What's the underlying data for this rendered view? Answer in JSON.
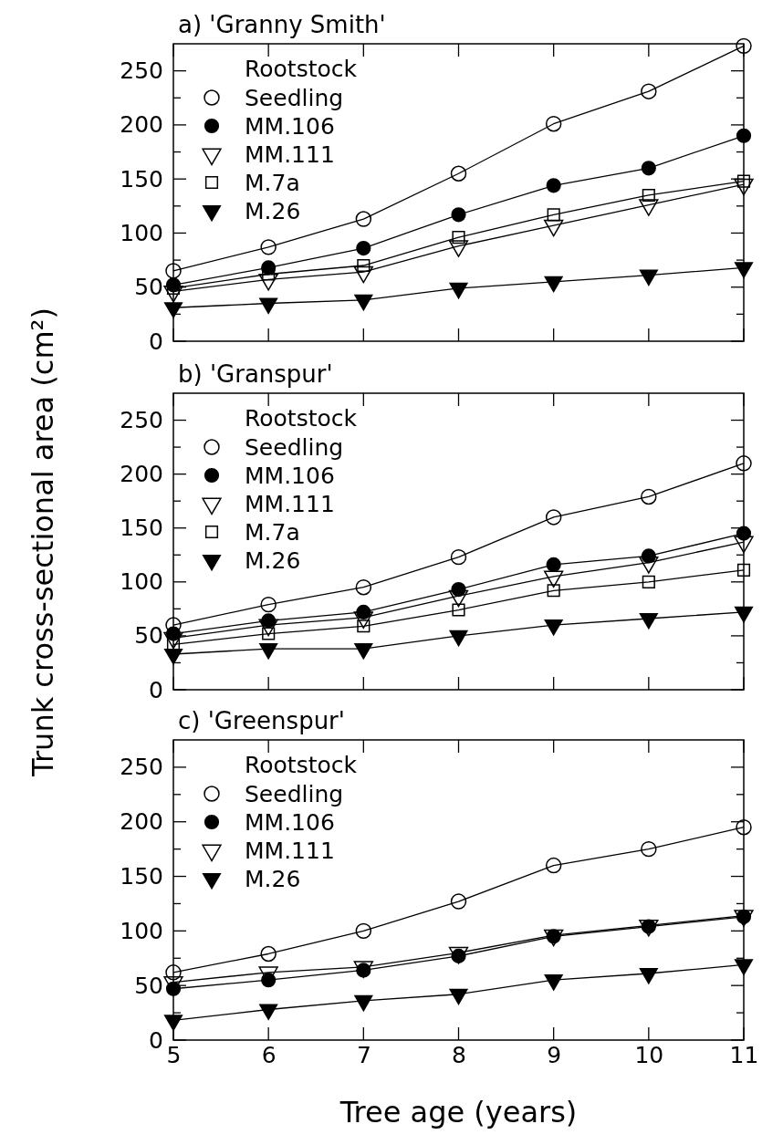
{
  "chart_data": [
    {
      "type": "line",
      "title": "a) 'Granny Smith'",
      "legend_title": "Rootstock",
      "legend": "top left",
      "tick_labels": "y",
      "x": [
        5,
        6,
        7,
        8,
        9,
        10,
        11
      ],
      "xlim": [
        5,
        11
      ],
      "xticks": [
        5,
        6,
        7,
        8,
        9,
        10,
        11
      ],
      "ylim": [
        0,
        275
      ],
      "yticks": [
        0,
        {
          "value": 25,
          "label": null
        },
        50,
        {
          "value": 75,
          "label": null
        },
        100,
        {
          "value": 125,
          "label": null
        },
        150,
        {
          "value": 175,
          "label": null
        },
        200,
        {
          "value": 225,
          "label": null
        },
        250
      ],
      "series": [
        {
          "name": "Seedling",
          "color": "#000000",
          "marker": "circle-open",
          "values": [
            65,
            87,
            113,
            155,
            201,
            231,
            273
          ]
        },
        {
          "name": "MM.106",
          "color": "#000000",
          "marker": "circle",
          "values": [
            52,
            68,
            86,
            117,
            144,
            160,
            190
          ]
        },
        {
          "name": "MM.111",
          "color": "#000000",
          "marker": "triangle-down-open",
          "values": [
            46,
            57,
            64,
            88,
            107,
            126,
            145
          ]
        },
        {
          "name": "M.7a",
          "color": "#000000",
          "marker": "square-open",
          "values": [
            49,
            62,
            70,
            96,
            117,
            135,
            148
          ]
        },
        {
          "name": "M.26",
          "color": "#000000",
          "marker": "triangle-down",
          "values": [
            31,
            35,
            38,
            49,
            55,
            61,
            68
          ]
        }
      ]
    },
    {
      "type": "line",
      "title": "b) 'Granspur'",
      "ylabel": "Trunk cross-sectional area (cm²)",
      "legend_title": "Rootstock",
      "legend": "top left",
      "tick_labels": "y",
      "x": [
        5,
        6,
        7,
        8,
        9,
        10,
        11
      ],
      "xlim": [
        5,
        11
      ],
      "xticks": [
        5,
        6,
        7,
        8,
        9,
        10,
        11
      ],
      "ylim": [
        0,
        275
      ],
      "yticks": [
        0,
        {
          "value": 25,
          "label": null
        },
        50,
        {
          "value": 75,
          "label": null
        },
        100,
        {
          "value": 125,
          "label": null
        },
        150,
        {
          "value": 175,
          "label": null
        },
        200,
        {
          "value": 225,
          "label": null
        },
        250
      ],
      "series": [
        {
          "name": "Seedling",
          "color": "#000000",
          "marker": "circle-open",
          "values": [
            60,
            79,
            95,
            123,
            160,
            179,
            210
          ]
        },
        {
          "name": "MM.106",
          "color": "#000000",
          "marker": "circle",
          "values": [
            52,
            64,
            72,
            93,
            116,
            124,
            145
          ]
        },
        {
          "name": "MM.111",
          "color": "#000000",
          "marker": "triangle-down-open",
          "values": [
            48,
            60,
            67,
            87,
            105,
            118,
            137
          ]
        },
        {
          "name": "M.7a",
          "color": "#000000",
          "marker": "square-open",
          "values": [
            42,
            52,
            59,
            74,
            92,
            100,
            111
          ]
        },
        {
          "name": "M.26",
          "color": "#000000",
          "marker": "triangle-down",
          "values": [
            33,
            38,
            38,
            50,
            60,
            66,
            72
          ]
        }
      ]
    },
    {
      "type": "line",
      "title": "c) 'Greenspur'",
      "xlabel": "Tree age (years)",
      "legend_title": "Rootstock",
      "legend": "top left",
      "x": [
        5,
        6,
        7,
        8,
        9,
        10,
        11
      ],
      "xlim": [
        5,
        11
      ],
      "xticks": [
        5,
        6,
        7,
        8,
        9,
        10,
        11
      ],
      "ylim": [
        0,
        275
      ],
      "yticks": [
        0,
        {
          "value": 25,
          "label": null
        },
        50,
        {
          "value": 75,
          "label": null
        },
        100,
        {
          "value": 125,
          "label": null
        },
        150,
        {
          "value": 175,
          "label": null
        },
        200,
        {
          "value": 225,
          "label": null
        },
        250
      ],
      "series": [
        {
          "name": "Seedling",
          "color": "#000000",
          "marker": "circle-open",
          "values": [
            62,
            79,
            100,
            127,
            160,
            175,
            195
          ]
        },
        {
          "name": "MM.106",
          "color": "#000000",
          "marker": "circle",
          "values": [
            47,
            55,
            64,
            77,
            95,
            104,
            113
          ]
        },
        {
          "name": "MM.111",
          "color": "#000000",
          "marker": "triangle-down-open",
          "values": [
            53,
            62,
            67,
            80,
            96,
            105,
            114
          ]
        },
        {
          "name": "M.26",
          "color": "#000000",
          "marker": "triangle-down",
          "values": [
            18,
            28,
            36,
            42,
            55,
            61,
            69
          ]
        }
      ]
    }
  ]
}
